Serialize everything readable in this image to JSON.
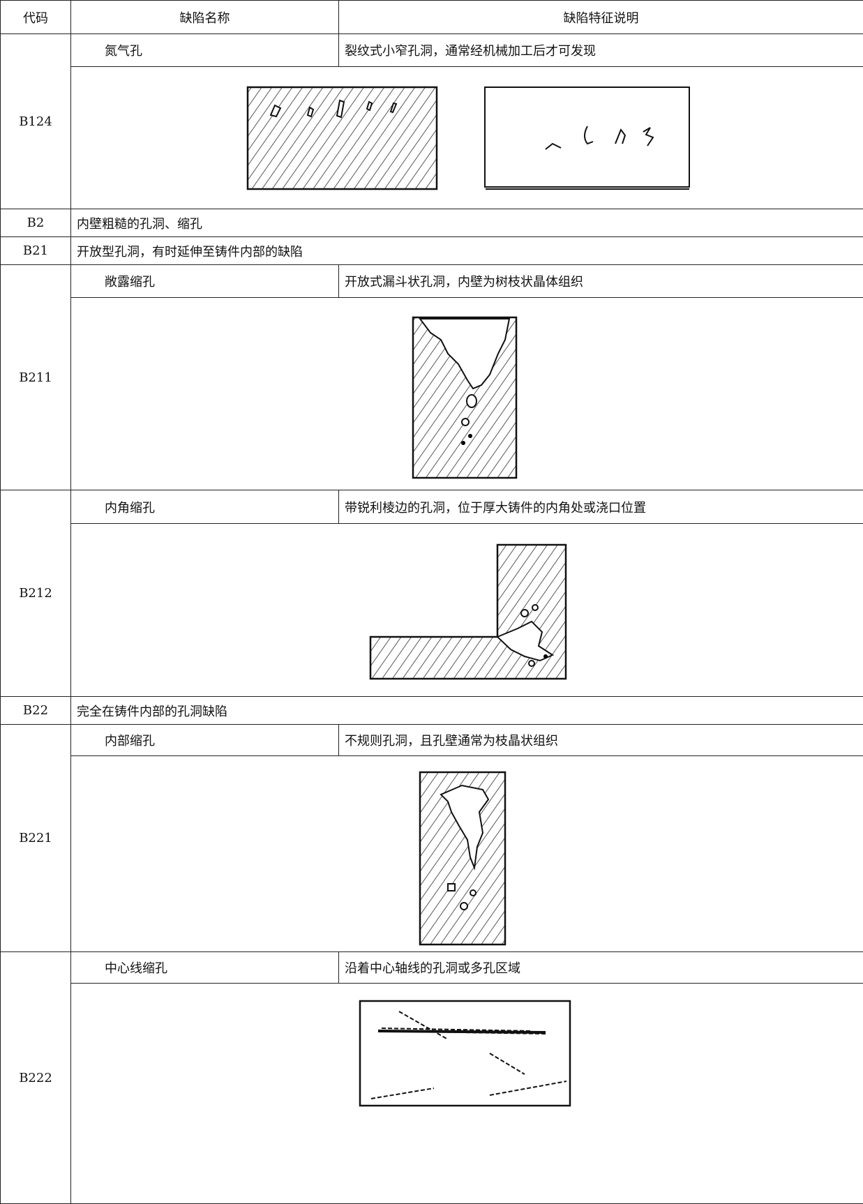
{
  "table": {
    "header": [
      "代码",
      "缺陷名称",
      "缺陷特征说明"
    ],
    "rows": [
      {
        "code": "B124",
        "name": "氮气孔",
        "description": "裂纹式小窄孔洞，通常经机械加工后才可发现"
      },
      {
        "code": "B2",
        "description": "内壁粗糙的孔洞、缩孔"
      },
      {
        "code": "B21",
        "description": "开放型孔洞，有时延伸至铸件内部的缺陷"
      },
      {
        "code": "B211",
        "name": "敞露缩孔",
        "description": "开放式漏斗状孔洞，内壁为树枝状晶体组织"
      },
      {
        "code": "B212",
        "name": "内角缩孔",
        "description": "带锐利棱边的孔洞，位于厚大铸件的内角处或浇口位置"
      },
      {
        "code": "B22",
        "description": "完全在铸件内部的孔洞缺陷"
      },
      {
        "code": "B221",
        "name": "内部缩孔",
        "description": "不规则孔洞，且孔壁通常为枝晶状组织"
      },
      {
        "code": "B222",
        "name": "中心线缩孔",
        "description": "沿着中心轴线的孔洞或多孔区域"
      }
    ]
  }
}
